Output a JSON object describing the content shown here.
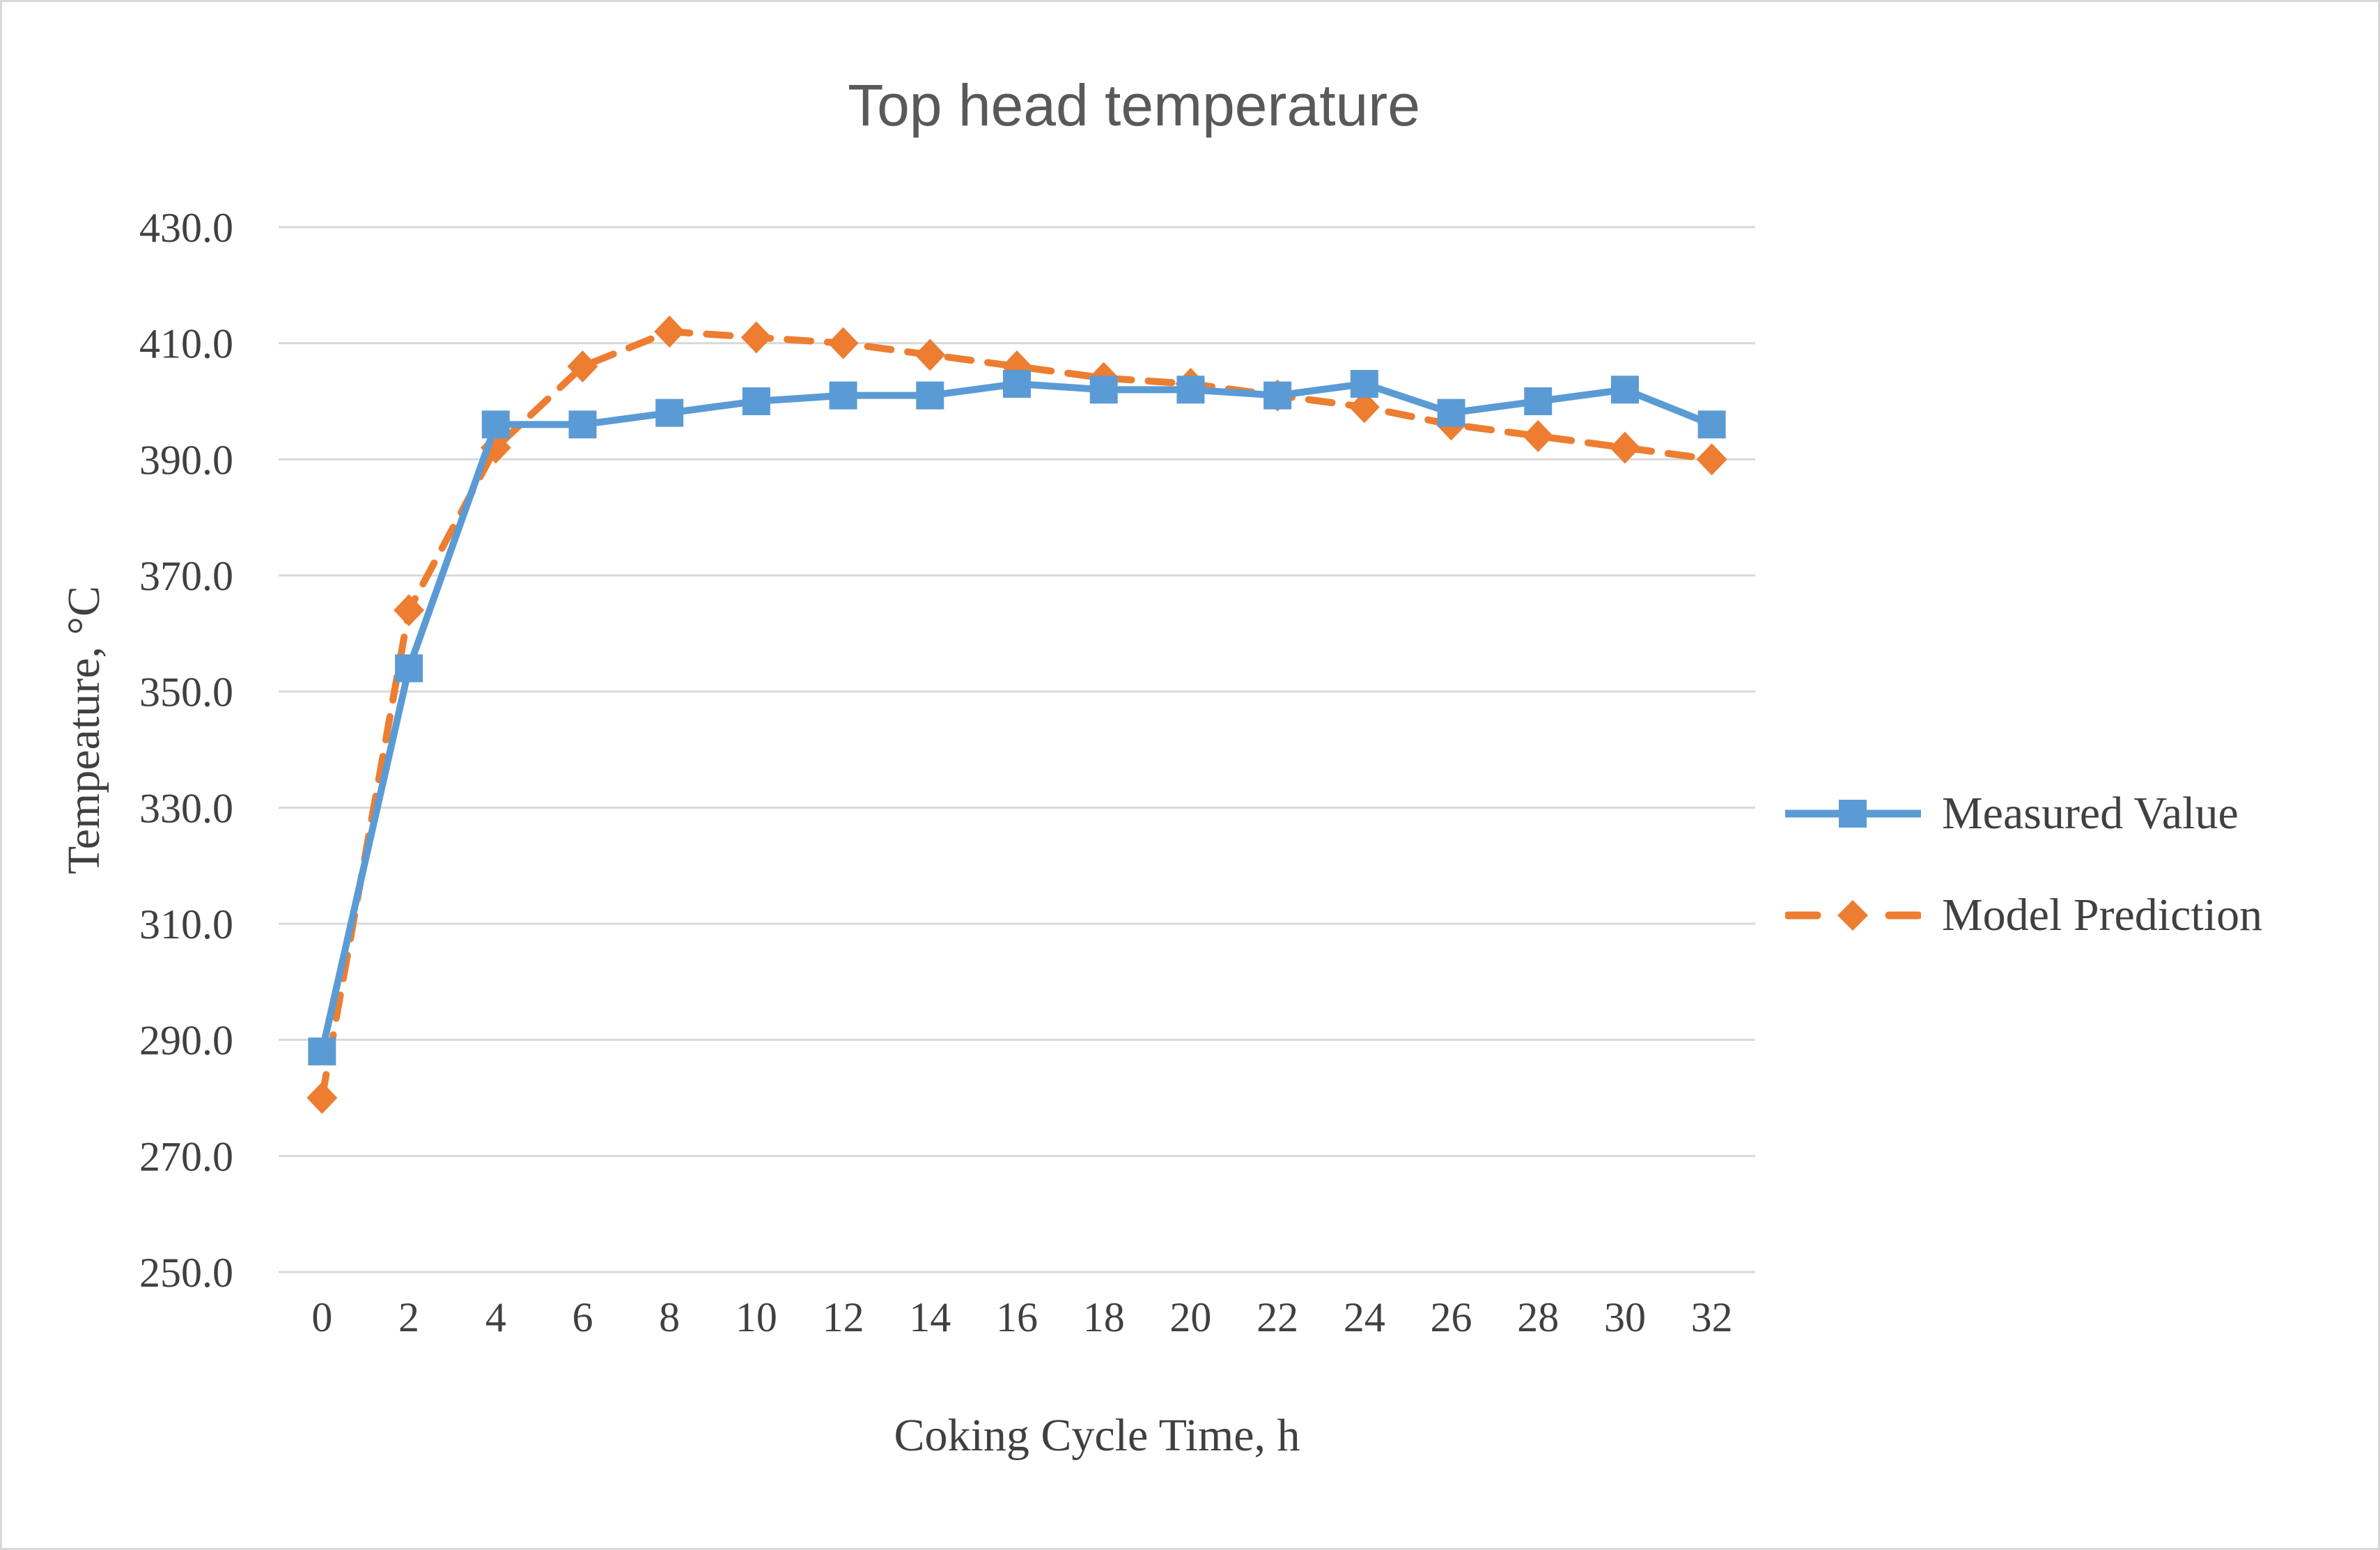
{
  "chart_data": {
    "type": "line",
    "title": "Top head temperature",
    "xlabel": "Coking Cycle Time, h",
    "ylabel": "Tempeature, °C",
    "x": [
      0,
      2,
      4,
      6,
      8,
      10,
      12,
      14,
      16,
      18,
      20,
      22,
      24,
      26,
      28,
      30,
      32
    ],
    "x_tick_labels": [
      "0",
      "2",
      "4",
      "6",
      "8",
      "10",
      "12",
      "14",
      "16",
      "18",
      "20",
      "22",
      "24",
      "26",
      "28",
      "30",
      "32"
    ],
    "ylim": [
      250.0,
      430.0
    ],
    "ytick_step": 20,
    "y_tick_labels": [
      "430.0",
      "410.0",
      "390.0",
      "370.0",
      "350.0",
      "330.0",
      "310.0",
      "290.0",
      "270.0",
      "250.0"
    ],
    "grid": "horizontal-only",
    "legend_position": "right",
    "series": [
      {
        "name": "Measured Value",
        "color": "#5B9BD5",
        "line": "solid",
        "marker": "square",
        "values": [
          288,
          354,
          396,
          396,
          398,
          400,
          401,
          401,
          403,
          402,
          402,
          401,
          403,
          398,
          400,
          402,
          396
        ]
      },
      {
        "name": "Model Prediction",
        "color": "#ED7D31",
        "line": "dashed",
        "marker": "diamond",
        "values": [
          280,
          364,
          392,
          406,
          412,
          411,
          410,
          408,
          406,
          404,
          403,
          401,
          399,
          396,
          394,
          392,
          390
        ]
      }
    ]
  },
  "colors": {
    "title_text": "#595959",
    "axis_text": "#404040",
    "gridline": "#D9D9D9",
    "chart_border": "#D9D9D9",
    "background": "#FFFFFF"
  }
}
